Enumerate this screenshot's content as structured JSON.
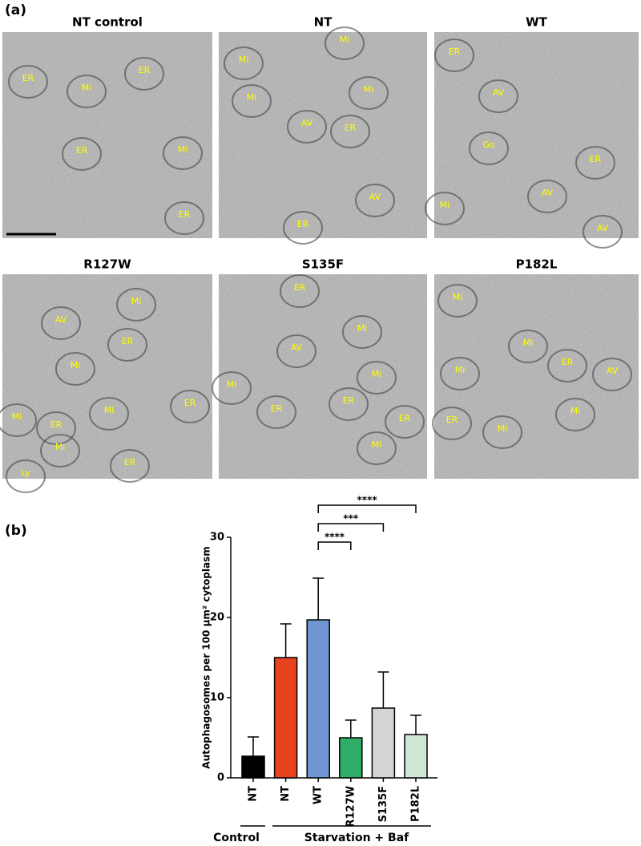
{
  "panel_a": {
    "label": "(a)",
    "images": [
      {
        "title": "NT control",
        "labels": [
          "ER",
          "Mi",
          "ER",
          "ER",
          "Mi",
          "ER"
        ]
      },
      {
        "title": "NT",
        "labels": [
          "Mi",
          "Mi",
          "Mi",
          "Mi",
          "AV",
          "ER",
          "AV",
          "ER"
        ]
      },
      {
        "title": "WT",
        "labels": [
          "ER",
          "AV",
          "Go",
          "ER",
          "AV",
          "Mi",
          "AV"
        ]
      },
      {
        "title": "R127W",
        "labels": [
          "AV",
          "Mi",
          "ER",
          "Mi",
          "Mi",
          "ER",
          "Mi",
          "ER",
          "Mi",
          "ER",
          "Ly"
        ]
      },
      {
        "title": "S135F",
        "labels": [
          "ER",
          "Mi",
          "AV",
          "Mi",
          "Mi",
          "ER",
          "ER",
          "ER",
          "Mi"
        ]
      },
      {
        "title": "P182L",
        "labels": [
          "Mi",
          "Mi",
          "ER",
          "Mi",
          "AV",
          "ER",
          "Mi",
          "Mi"
        ]
      }
    ]
  },
  "panel_b": {
    "label": "(b)"
  },
  "chart_data": {
    "type": "bar",
    "y_label": "Autophagosomes per 100 μm² cytoplasm",
    "categories": [
      "NT",
      "NT",
      "WT",
      "R127W",
      "S135F",
      "P182L"
    ],
    "values": [
      2.7,
      15.0,
      19.7,
      5.0,
      8.7,
      5.4
    ],
    "errors": [
      2.4,
      4.2,
      5.2,
      2.2,
      4.5,
      2.4
    ],
    "colors": [
      "#000000",
      "#e8431f",
      "#6f95d2",
      "#2fae6a",
      "#d4d4d4",
      "#cfe8d6"
    ],
    "ylim": [
      0,
      30
    ],
    "yticks": [
      0,
      10,
      20,
      30
    ],
    "significance": [
      "****",
      "***",
      "****"
    ],
    "groups": [
      "Control",
      "Starvation + Baf"
    ]
  }
}
